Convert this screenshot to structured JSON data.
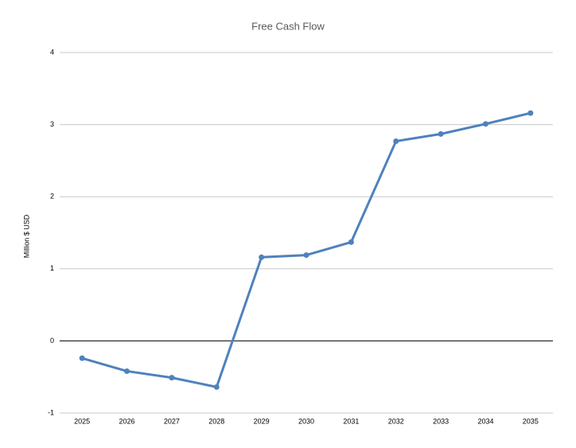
{
  "chart_data": {
    "type": "line",
    "title": "Free Cash Flow",
    "y_label": "Million $ USD",
    "categories": [
      "2025",
      "2026",
      "2027",
      "2028",
      "2029",
      "2030",
      "2031",
      "2032",
      "2033",
      "2034",
      "2035"
    ],
    "series": [
      {
        "name": "Free Cash Flow",
        "color": "#4f81bd",
        "values": [
          -0.24,
          -0.42,
          -0.51,
          -0.64,
          1.16,
          1.19,
          1.37,
          2.77,
          2.87,
          3.01,
          3.16
        ]
      }
    ],
    "ylim": [
      -1,
      4
    ],
    "yticks": [
      -1,
      0,
      1,
      2,
      3,
      4
    ],
    "grid": true
  }
}
